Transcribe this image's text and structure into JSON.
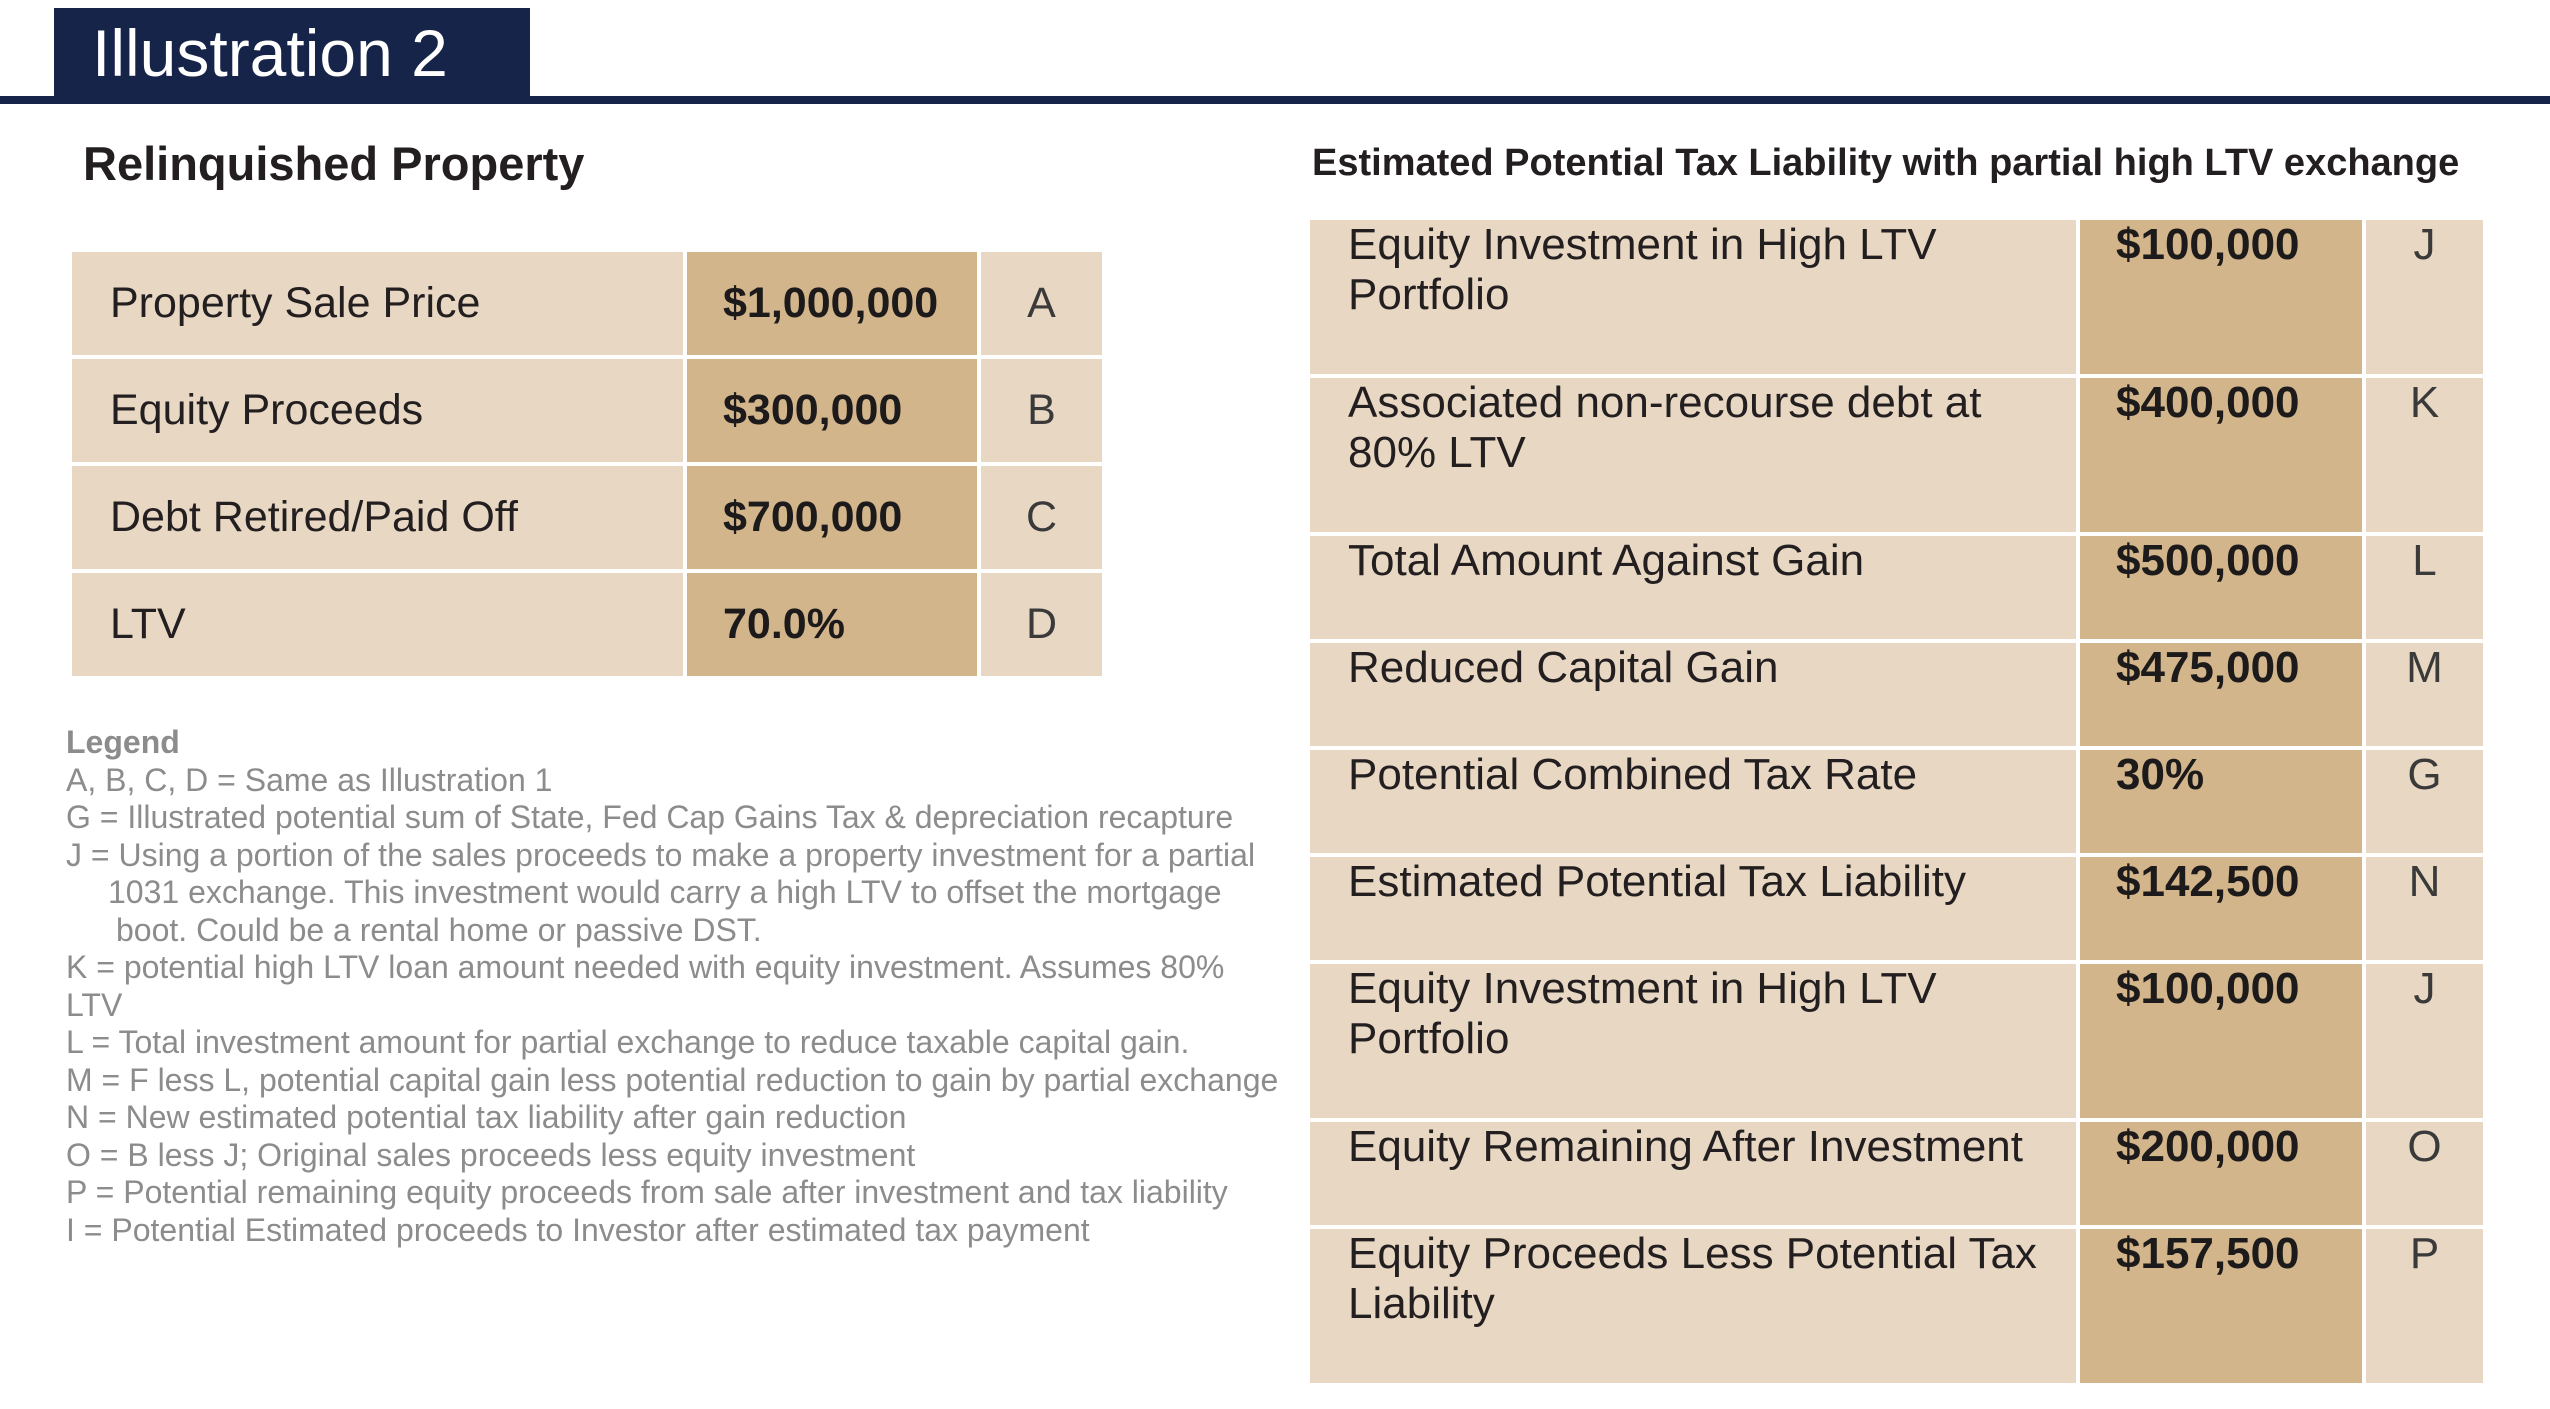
{
  "header": {
    "title": "Illustration 2"
  },
  "relinquished": {
    "heading": "Relinquished Property",
    "rows": [
      {
        "label": "Property Sale Price",
        "value": "$1,000,000",
        "letter": "A"
      },
      {
        "label": "Equity Proceeds",
        "value": "$300,000",
        "letter": "B"
      },
      {
        "label": "Debt Retired/Paid Off",
        "value": "$700,000",
        "letter": "C"
      },
      {
        "label": "LTV",
        "value": "70.0%",
        "letter": "D"
      }
    ]
  },
  "legend": {
    "title": "Legend",
    "lines": [
      "A, B, C, D = Same as Illustration 1",
      "G = Illustrated potential sum of State, Fed Cap Gains Tax & depreciation recapture",
      "J = Using a portion of the sales proceeds to make a property investment for a partial",
      "1031 exchange. This investment would carry a high LTV to offset the mortgage",
      "boot. Could be a rental home or passive DST.",
      "K = potential high LTV loan amount needed with equity investment. Assumes 80%",
      "LTV",
      "L = Total investment amount for partial exchange to reduce taxable capital gain.",
      "M = F less L, potential capital gain less potential reduction to gain by partial exchange",
      "N = New estimated potential tax liability after gain reduction",
      "O = B less J; Original sales proceeds less equity investment",
      "P = Potential remaining equity proceeds from sale after investment and tax liability",
      "I = Potential Estimated proceeds to Investor after estimated tax payment"
    ]
  },
  "estimate": {
    "heading": "Estimated Potential Tax Liability with partial high LTV exchange",
    "rows": [
      {
        "label": "Equity Investment in High LTV Portfolio",
        "value": "$100,000",
        "letter": "J"
      },
      {
        "label": "Associated non-recourse debt at 80% LTV",
        "value": "$400,000",
        "letter": "K"
      },
      {
        "label": "Total Amount Against Gain",
        "value": "$500,000",
        "letter": "L"
      },
      {
        "label": "Reduced Capital Gain",
        "value": "$475,000",
        "letter": "M"
      },
      {
        "label": "Potential Combined Tax Rate",
        "value": "30%",
        "letter": "G"
      },
      {
        "label": "Estimated Potential Tax Liability",
        "value": "$142,500",
        "letter": "N"
      },
      {
        "label": "Equity Investment in High LTV Portfolio",
        "value": "$100,000",
        "letter": "J"
      },
      {
        "label": "Equity Remaining After Investment",
        "value": "$200,000",
        "letter": "O"
      },
      {
        "label": "Equity Proceeds Less Potential Tax Liability",
        "value": "$157,500",
        "letter": "P"
      }
    ]
  },
  "colors": {
    "navy": "#172449",
    "label_cell": "#e8d8c3",
    "value_cell": "#d3b58b",
    "legend_text": "#8c8c8c"
  }
}
